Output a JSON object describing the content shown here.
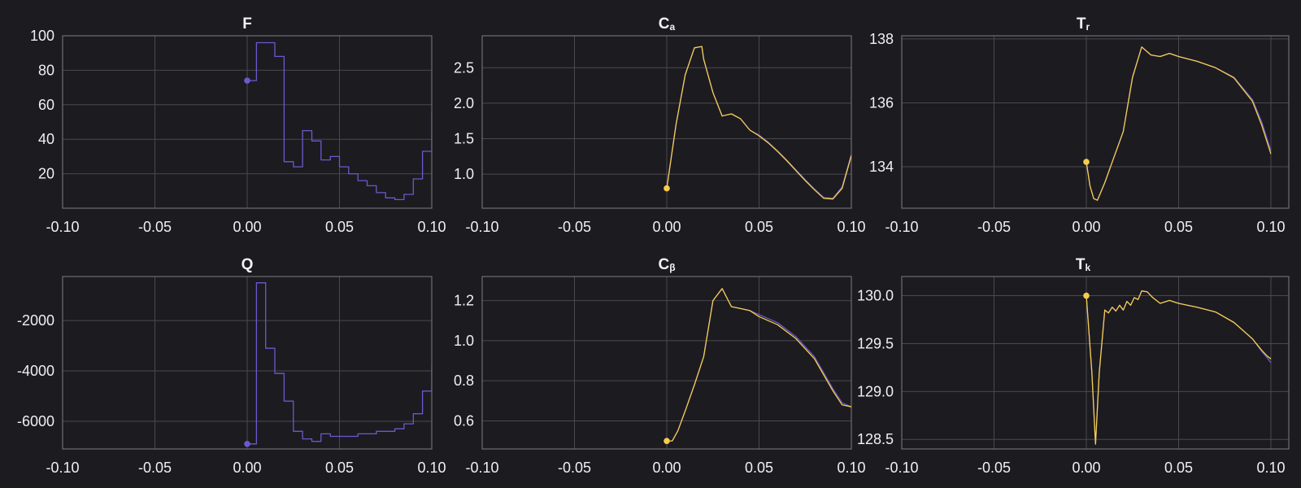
{
  "colors": {
    "background": "#1c1b20",
    "purple": "#6a5acd",
    "yellow": "#f5cd4e",
    "grid": "#4a494f",
    "text": "#f0f0f0"
  },
  "chart_data": [
    {
      "id": "F",
      "type": "line",
      "step": true,
      "title": "F",
      "title_sub": "",
      "xlabel": "",
      "ylabel": "",
      "xlim": [
        -0.1,
        0.1
      ],
      "ylim": [
        0,
        100
      ],
      "xticks": [
        "-0.10",
        "-0.05",
        "0.00",
        "0.05",
        "0.10"
      ],
      "yticks": [
        {
          "v": 20,
          "label": "20"
        },
        {
          "v": 40,
          "label": "40"
        },
        {
          "v": 60,
          "label": "60"
        },
        {
          "v": 80,
          "label": "80"
        },
        {
          "v": 100,
          "label": "100"
        }
      ],
      "grid": true,
      "marker": {
        "x": 0.0,
        "y": 74,
        "color": "purple"
      },
      "series": [
        {
          "color": "purple",
          "x": [
            0.0,
            0.005,
            0.01,
            0.015,
            0.02,
            0.025,
            0.03,
            0.035,
            0.04,
            0.045,
            0.05,
            0.055,
            0.06,
            0.065,
            0.07,
            0.075,
            0.08,
            0.085,
            0.09,
            0.095,
            0.1
          ],
          "y": [
            74,
            96,
            96,
            88,
            27,
            24,
            45,
            39,
            28,
            30,
            24,
            20,
            16,
            13,
            9,
            6,
            5,
            8,
            17,
            33,
            55
          ]
        }
      ]
    },
    {
      "id": "Ca",
      "type": "line",
      "title": "C",
      "title_sub": "a",
      "xlabel": "",
      "ylabel": "",
      "xlim": [
        -0.1,
        0.1
      ],
      "ylim": [
        0.52,
        2.95
      ],
      "xticks": [
        "-0.10",
        "-0.05",
        "0.00",
        "0.05",
        "0.10"
      ],
      "yticks": [
        {
          "v": 1.0,
          "label": "1.0"
        },
        {
          "v": 1.5,
          "label": "1.5"
        },
        {
          "v": 2.0,
          "label": "2.0"
        },
        {
          "v": 2.5,
          "label": "2.5"
        }
      ],
      "grid": true,
      "marker": {
        "x": 0.0,
        "y": 0.8,
        "color": "yellow"
      },
      "series": [
        {
          "color": "purple",
          "x": [
            0.0,
            0.005,
            0.01,
            0.015,
            0.019,
            0.02,
            0.025,
            0.03,
            0.035,
            0.04,
            0.045,
            0.05,
            0.055,
            0.06,
            0.065,
            0.07,
            0.075,
            0.08,
            0.085,
            0.09,
            0.095,
            0.1
          ],
          "y": [
            0.8,
            1.7,
            2.4,
            2.78,
            2.8,
            2.62,
            2.15,
            1.82,
            1.85,
            1.78,
            1.62,
            1.55,
            1.45,
            1.33,
            1.2,
            1.06,
            0.92,
            0.79,
            0.67,
            0.66,
            0.82,
            1.28
          ]
        },
        {
          "color": "yellow",
          "x": [
            0.0,
            0.005,
            0.01,
            0.015,
            0.019,
            0.02,
            0.025,
            0.03,
            0.035,
            0.04,
            0.045,
            0.05,
            0.055,
            0.06,
            0.065,
            0.07,
            0.075,
            0.08,
            0.085,
            0.09,
            0.095,
            0.1
          ],
          "y": [
            0.8,
            1.7,
            2.4,
            2.78,
            2.8,
            2.62,
            2.15,
            1.82,
            1.85,
            1.78,
            1.62,
            1.54,
            1.44,
            1.32,
            1.19,
            1.05,
            0.91,
            0.78,
            0.66,
            0.65,
            0.8,
            1.26
          ]
        }
      ]
    },
    {
      "id": "Tr",
      "type": "line",
      "title": "T",
      "title_sub": "r",
      "xlabel": "",
      "ylabel": "",
      "xlim": [
        -0.1,
        0.1
      ],
      "ylim": [
        132.7,
        138.1
      ],
      "xticks": [
        "-0.10",
        "-0.05",
        "0.00",
        "0.05",
        "0.10"
      ],
      "yticks": [
        {
          "v": 134,
          "label": "134"
        },
        {
          "v": 136,
          "label": "136"
        },
        {
          "v": 138,
          "label": "138"
        }
      ],
      "grid": true,
      "marker": {
        "x": 0.0,
        "y": 134.15,
        "color": "yellow"
      },
      "series": [
        {
          "color": "purple",
          "x": [
            0.0,
            0.002,
            0.004,
            0.006,
            0.01,
            0.015,
            0.02,
            0.025,
            0.03,
            0.035,
            0.04,
            0.045,
            0.05,
            0.06,
            0.07,
            0.08,
            0.09,
            0.095,
            0.1
          ],
          "y": [
            134.15,
            133.4,
            133.0,
            132.95,
            133.5,
            134.3,
            135.1,
            136.8,
            137.75,
            137.5,
            137.45,
            137.55,
            137.45,
            137.3,
            137.1,
            136.8,
            136.1,
            135.4,
            134.5
          ]
        },
        {
          "color": "yellow",
          "x": [
            0.0,
            0.002,
            0.004,
            0.006,
            0.01,
            0.015,
            0.02,
            0.025,
            0.03,
            0.035,
            0.04,
            0.045,
            0.05,
            0.06,
            0.07,
            0.08,
            0.09,
            0.095,
            0.1
          ],
          "y": [
            134.15,
            133.4,
            133.0,
            132.95,
            133.5,
            134.3,
            135.1,
            136.8,
            137.75,
            137.5,
            137.45,
            137.55,
            137.45,
            137.3,
            137.1,
            136.78,
            136.05,
            135.3,
            134.4
          ]
        }
      ]
    },
    {
      "id": "Q",
      "type": "line",
      "step": true,
      "title": "Q",
      "title_sub": "",
      "xlabel": "",
      "ylabel": "",
      "xlim": [
        -0.1,
        0.1
      ],
      "ylim": [
        -7100,
        -250
      ],
      "xticks": [
        "-0.10",
        "-0.05",
        "0.00",
        "0.05",
        "0.10"
      ],
      "yticks": [
        {
          "v": -6000,
          "label": "-6000"
        },
        {
          "v": -4000,
          "label": "-4000"
        },
        {
          "v": -2000,
          "label": "-2000"
        }
      ],
      "grid": true,
      "marker": {
        "x": 0.0,
        "y": -6900,
        "color": "purple"
      },
      "series": [
        {
          "color": "purple",
          "x": [
            0.0,
            0.005,
            0.01,
            0.015,
            0.02,
            0.025,
            0.03,
            0.035,
            0.04,
            0.045,
            0.05,
            0.06,
            0.07,
            0.08,
            0.085,
            0.09,
            0.095,
            0.1
          ],
          "y": [
            -6900,
            -500,
            -3100,
            -4100,
            -5200,
            -6400,
            -6700,
            -6800,
            -6500,
            -6600,
            -6600,
            -6500,
            -6400,
            -6300,
            -6100,
            -5700,
            -4800,
            -3800
          ]
        }
      ]
    },
    {
      "id": "Cb",
      "type": "line",
      "title": "C",
      "title_sub": "β",
      "xlabel": "",
      "ylabel": "",
      "xlim": [
        -0.1,
        0.1
      ],
      "ylim": [
        0.46,
        1.32
      ],
      "xticks": [
        "-0.10",
        "-0.05",
        "0.00",
        "0.05",
        "0.10"
      ],
      "yticks": [
        {
          "v": 0.6,
          "label": "0.6"
        },
        {
          "v": 0.8,
          "label": "0.8"
        },
        {
          "v": 1.0,
          "label": "1.0"
        },
        {
          "v": 1.2,
          "label": "1.2"
        }
      ],
      "grid": true,
      "marker": {
        "x": 0.0,
        "y": 0.5,
        "color": "yellow"
      },
      "series": [
        {
          "color": "purple",
          "x": [
            0.0,
            0.003,
            0.006,
            0.01,
            0.015,
            0.02,
            0.025,
            0.03,
            0.035,
            0.04,
            0.045,
            0.05,
            0.06,
            0.07,
            0.08,
            0.09,
            0.095,
            0.1
          ],
          "y": [
            0.5,
            0.5,
            0.55,
            0.65,
            0.78,
            0.92,
            1.2,
            1.26,
            1.17,
            1.16,
            1.15,
            1.13,
            1.09,
            1.02,
            0.92,
            0.76,
            0.69,
            0.67
          ]
        },
        {
          "color": "yellow",
          "x": [
            0.0,
            0.003,
            0.006,
            0.01,
            0.015,
            0.02,
            0.025,
            0.03,
            0.035,
            0.04,
            0.045,
            0.05,
            0.06,
            0.07,
            0.08,
            0.09,
            0.095,
            0.1
          ],
          "y": [
            0.5,
            0.5,
            0.55,
            0.65,
            0.78,
            0.92,
            1.2,
            1.26,
            1.17,
            1.16,
            1.15,
            1.12,
            1.08,
            1.01,
            0.91,
            0.75,
            0.68,
            0.67
          ]
        }
      ]
    },
    {
      "id": "Tk",
      "type": "line",
      "title": "T",
      "title_sub": "k",
      "xlabel": "",
      "ylabel": "",
      "xlim": [
        -0.1,
        0.1
      ],
      "ylim": [
        128.4,
        130.2
      ],
      "xticks": [
        "-0.10",
        "-0.05",
        "0.00",
        "0.05",
        "0.10"
      ],
      "yticks": [
        {
          "v": 128.5,
          "label": "128.5"
        },
        {
          "v": 129.0,
          "label": "129.0"
        },
        {
          "v": 129.5,
          "label": "129.5"
        },
        {
          "v": 130.0,
          "label": "130.0"
        }
      ],
      "grid": true,
      "marker": {
        "x": 0.0,
        "y": 130.0,
        "color": "yellow"
      },
      "series": [
        {
          "color": "purple",
          "x": [
            0.0,
            0.003,
            0.005,
            0.007,
            0.01,
            0.012,
            0.014,
            0.016,
            0.018,
            0.02,
            0.022,
            0.024,
            0.026,
            0.028,
            0.03,
            0.033,
            0.036,
            0.04,
            0.045,
            0.05,
            0.06,
            0.07,
            0.08,
            0.09,
            0.095,
            0.098,
            0.1
          ],
          "y": [
            130.0,
            129.2,
            128.45,
            129.2,
            129.85,
            129.82,
            129.88,
            129.84,
            129.9,
            129.85,
            129.94,
            129.9,
            129.98,
            129.96,
            130.05,
            130.04,
            129.98,
            129.92,
            129.95,
            129.92,
            129.88,
            129.83,
            129.72,
            129.55,
            129.42,
            129.35,
            129.3
          ]
        },
        {
          "color": "yellow",
          "x": [
            0.0,
            0.003,
            0.005,
            0.007,
            0.01,
            0.012,
            0.014,
            0.016,
            0.018,
            0.02,
            0.022,
            0.024,
            0.026,
            0.028,
            0.03,
            0.033,
            0.036,
            0.04,
            0.045,
            0.05,
            0.06,
            0.07,
            0.08,
            0.09,
            0.095,
            0.098,
            0.1
          ],
          "y": [
            130.0,
            129.2,
            128.45,
            129.2,
            129.85,
            129.82,
            129.88,
            129.84,
            129.9,
            129.85,
            129.94,
            129.9,
            129.98,
            129.96,
            130.05,
            130.04,
            129.98,
            129.92,
            129.95,
            129.92,
            129.88,
            129.83,
            129.72,
            129.55,
            129.43,
            129.37,
            129.34
          ]
        }
      ]
    }
  ]
}
